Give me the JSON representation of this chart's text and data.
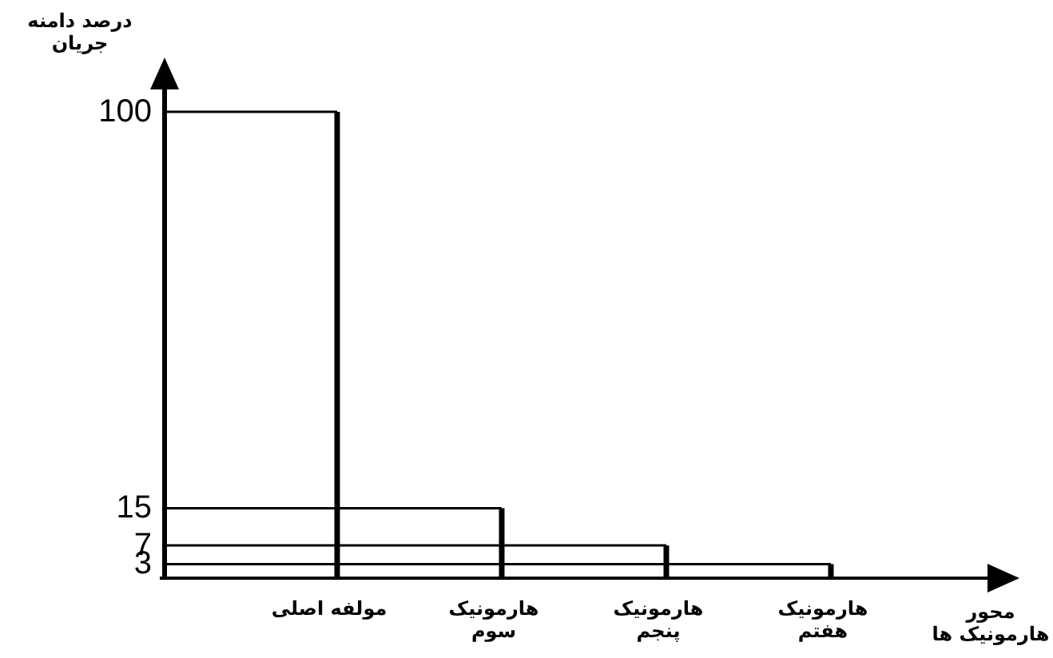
{
  "chart_data": {
    "type": "bar",
    "xlabel": "محور هارمونیک ها",
    "ylabel": "درصد دامنه جریان",
    "categories": [
      "مولفه اصلی",
      "هارمونیک سوم",
      "هارمونیک پنجم",
      "هارمونیک هفتم"
    ],
    "values": [
      100,
      15,
      7,
      3
    ],
    "color": "#000000",
    "ylim": [
      0,
      100
    ],
    "yticks": [
      100,
      15,
      7,
      3
    ],
    "ref_lines": [
      {
        "axis": "y",
        "value": 100,
        "color": "#000000"
      },
      {
        "axis": "y",
        "value": 15,
        "color": "#000000"
      },
      {
        "axis": "y",
        "value": 7,
        "color": "#000000"
      },
      {
        "axis": "y",
        "value": 3,
        "color": "#000000"
      }
    ]
  }
}
